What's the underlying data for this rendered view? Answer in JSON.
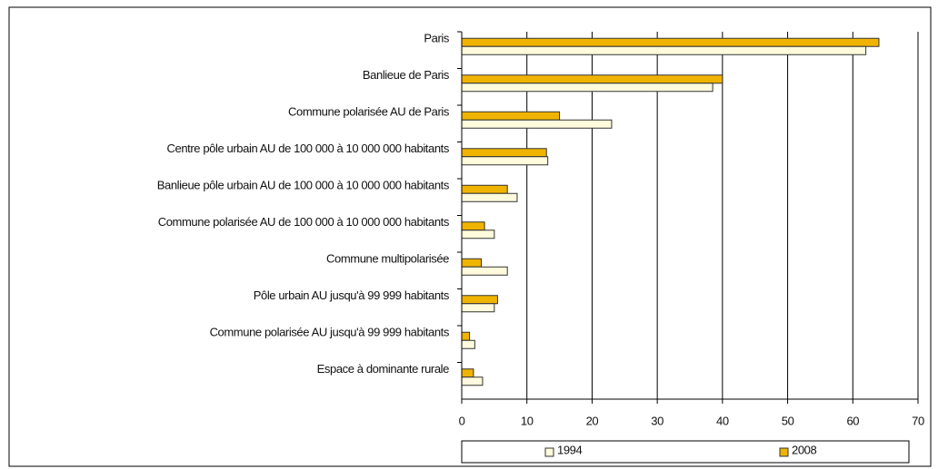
{
  "chart_data": {
    "type": "hbar",
    "categories": [
      "Paris",
      "Banlieue de Paris",
      "Commune polarisée AU de Paris",
      "Centre pôle urbain AU de 100 000 à 10 000 000 habitants",
      "Banlieue pôle urbain AU de 100 000 à 10 000 000 habitants",
      "Commune polarisée AU de 100 000 à 10 000 000 habitants",
      "Commune multipolarisée",
      "Pôle urbain AU jusqu'à 99 999 habitants",
      "Commune polarisée AU jusqu'à 99 999 habitants",
      "Espace à dominante rurale"
    ],
    "series": [
      {
        "name": "1994",
        "color": "#fffbdc",
        "values": [
          62,
          38.5,
          23,
          13.2,
          8.5,
          5,
          7,
          5,
          2,
          3.2
        ]
      },
      {
        "name": "2008",
        "color": "#f0b400",
        "values": [
          64,
          40,
          15,
          13,
          7,
          3.5,
          3,
          5.5,
          1.2,
          1.8
        ]
      }
    ],
    "xlim": [
      0,
      70
    ],
    "xticks": [
      0,
      10,
      20,
      30,
      40,
      50,
      60,
      70
    ],
    "grid": true
  }
}
